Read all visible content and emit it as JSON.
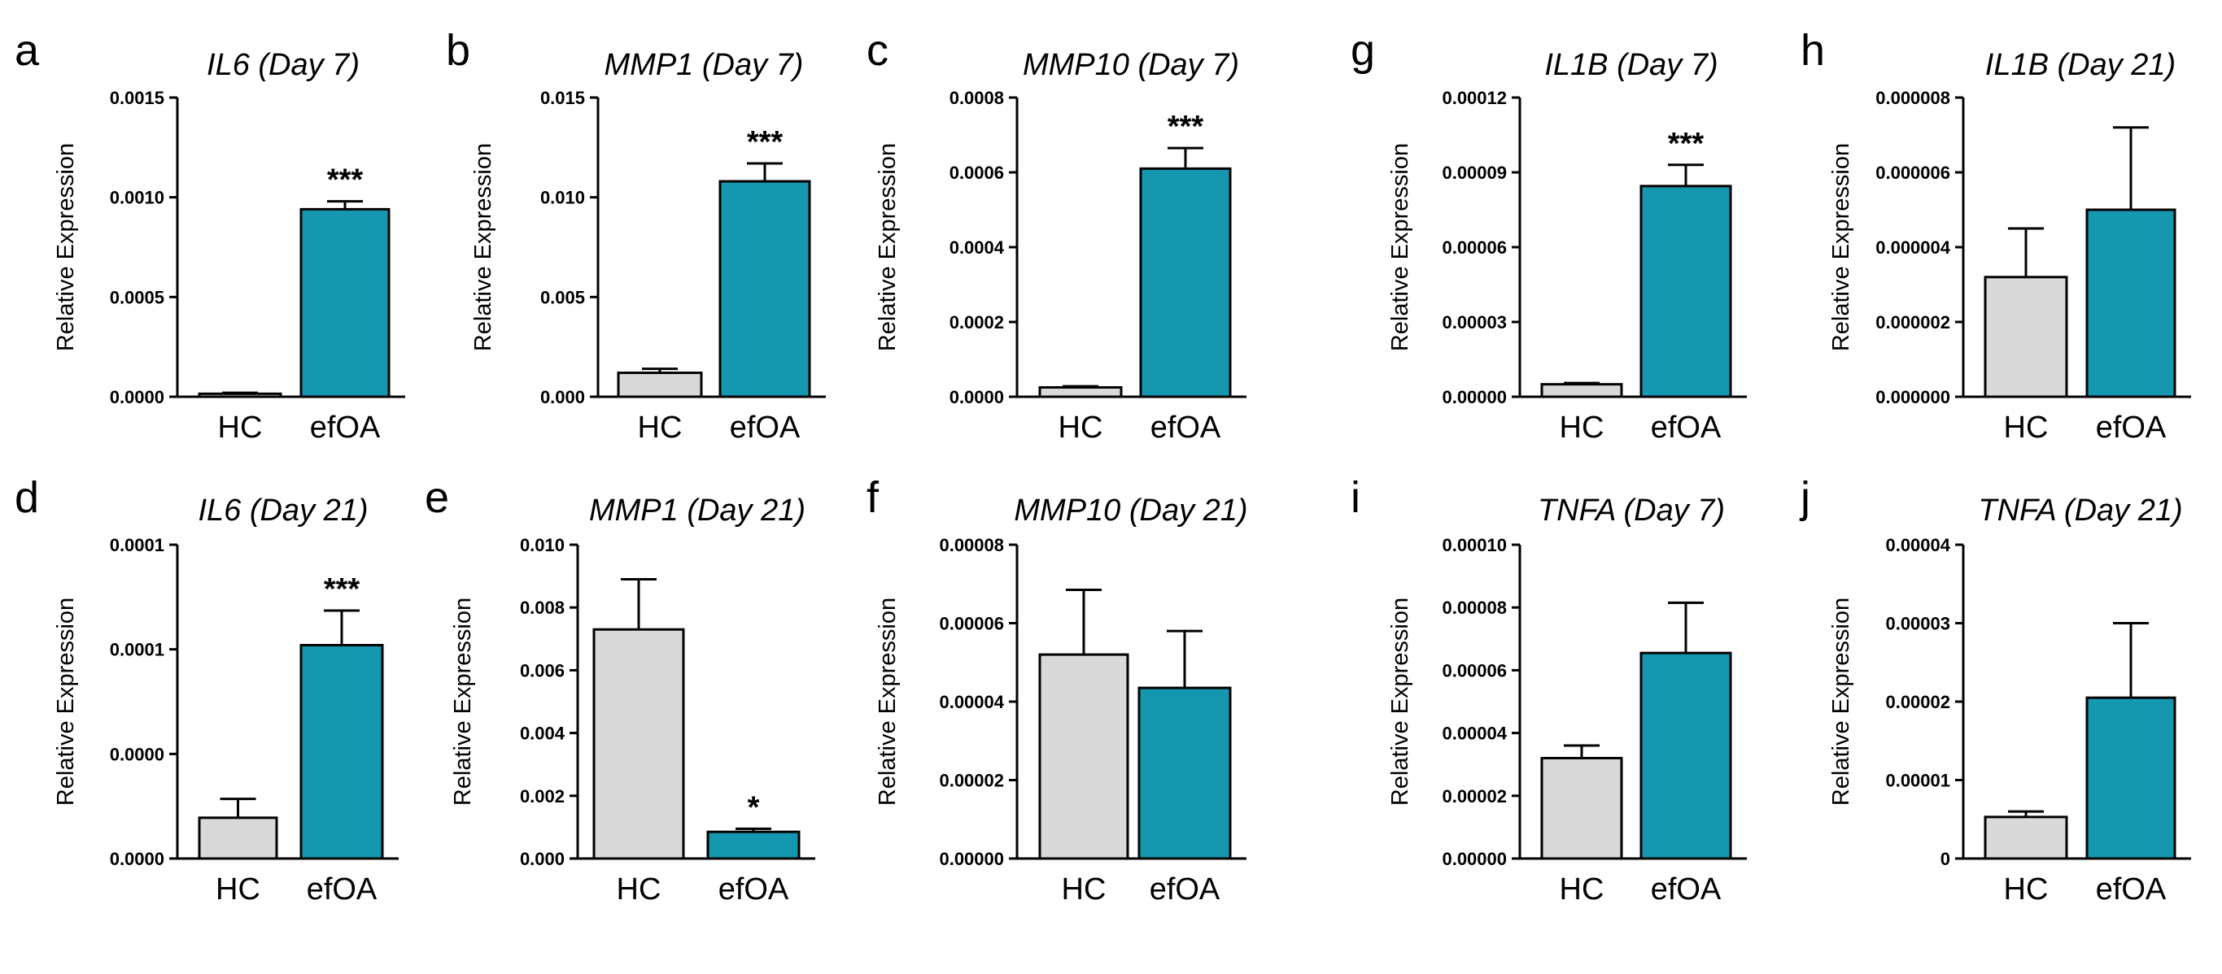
{
  "figure": {
    "colors": {
      "HC": "#d9d9d9",
      "efOA": "#1597af",
      "axis": "#000000"
    }
  },
  "chart_data": [
    {
      "letter": "a",
      "type": "bar",
      "title": "IL6 (Day 7)",
      "ylabel": "Relative Expression",
      "categories": [
        "HC",
        "efOA"
      ],
      "values": [
        1.5e-05,
        0.00094
      ],
      "errors": [
        5e-06,
        4e-05
      ],
      "ylim": [
        0,
        0.0015
      ],
      "yticks": [
        "0.0000",
        "0.0005",
        "0.0010",
        "0.0015"
      ],
      "significance": [
        "",
        "***"
      ]
    },
    {
      "letter": "b",
      "type": "bar",
      "title": "MMP1 (Day 7)",
      "ylabel": "Relative Expression",
      "categories": [
        "HC",
        "efOA"
      ],
      "values": [
        0.0012,
        0.0108
      ],
      "errors": [
        0.0002,
        0.0009
      ],
      "ylim": [
        0,
        0.015
      ],
      "yticks": [
        "0.000",
        "0.005",
        "0.010",
        "0.015"
      ],
      "significance": [
        "",
        "***"
      ]
    },
    {
      "letter": "c",
      "type": "bar",
      "title": "MMP10 (Day 7)",
      "ylabel": "Relative Expression",
      "categories": [
        "HC",
        "efOA"
      ],
      "values": [
        2.5e-05,
        0.00061
      ],
      "errors": [
        3e-06,
        5.5e-05
      ],
      "ylim": [
        0,
        0.0008
      ],
      "yticks": [
        "0.0000",
        "0.0002",
        "0.0004",
        "0.0006",
        "0.0008"
      ],
      "significance": [
        "",
        "***"
      ]
    },
    {
      "letter": "g",
      "type": "bar",
      "title": "IL1B (Day 7)",
      "ylabel": "Relative Expression",
      "categories": [
        "HC",
        "efOA"
      ],
      "values": [
        5e-06,
        8.45e-05
      ],
      "errors": [
        5e-07,
        8.5e-06
      ],
      "ylim": [
        0,
        0.00012
      ],
      "yticks": [
        "0.00000",
        "0.00003",
        "0.00006",
        "0.00009",
        "0.00012"
      ],
      "significance": [
        "",
        "***"
      ]
    },
    {
      "letter": "h",
      "type": "bar",
      "title": "IL1B (Day 21)",
      "ylabel": "Relative Expression",
      "categories": [
        "HC",
        "efOA"
      ],
      "values": [
        3.2e-06,
        5e-06
      ],
      "errors": [
        1.3e-06,
        2.2e-06
      ],
      "ylim": [
        0,
        8e-06
      ],
      "yticks": [
        "0.000000",
        "0.000002",
        "0.000004",
        "0.000006",
        "0.000008"
      ],
      "significance": [
        "",
        ""
      ]
    },
    {
      "letter": "d",
      "type": "bar",
      "title": "IL6 (Day 21)",
      "ylabel": "Relative Expression",
      "categories": [
        "HC",
        "efOA"
      ],
      "values": [
        1.3e-05,
        6.8e-05
      ],
      "errors": [
        6e-06,
        1.1e-05
      ],
      "ylim": [
        0,
        0.0001
      ],
      "yticks": [
        "0.0000",
        "0.0000",
        "0.0001",
        "0.0001"
      ],
      "significance": [
        "",
        "***"
      ]
    },
    {
      "letter": "e",
      "type": "bar",
      "title": "MMP1 (Day 21)",
      "ylabel": "Relative Expression",
      "categories": [
        "HC",
        "efOA"
      ],
      "values": [
        0.0073,
        0.00085
      ],
      "errors": [
        0.0016,
        0.0001
      ],
      "ylim": [
        0,
        0.01
      ],
      "yticks": [
        "0.000",
        "0.002",
        "0.004",
        "0.006",
        "0.008",
        "0.010"
      ],
      "significance": [
        "",
        "*"
      ]
    },
    {
      "letter": "f",
      "type": "bar",
      "title": "MMP10 (Day 21)",
      "ylabel": "Relative Expression",
      "categories": [
        "HC",
        "efOA"
      ],
      "values": [
        5.2e-05,
        4.35e-05
      ],
      "errors": [
        1.65e-05,
        1.45e-05
      ],
      "ylim": [
        0,
        8e-05
      ],
      "yticks": [
        "0.00000",
        "0.00002",
        "0.00004",
        "0.00006",
        "0.00008"
      ],
      "significance": [
        "",
        ""
      ]
    },
    {
      "letter": "i",
      "type": "bar",
      "title": "TNFA (Day 7)",
      "ylabel": "Relative Expression",
      "categories": [
        "HC",
        "efOA"
      ],
      "values": [
        3.2e-05,
        6.55e-05
      ],
      "errors": [
        4e-06,
        1.6e-05
      ],
      "ylim": [
        0,
        0.0001
      ],
      "yticks": [
        "0.00000",
        "0.00002",
        "0.00004",
        "0.00006",
        "0.00008",
        "0.00010"
      ],
      "significance": [
        "",
        ""
      ]
    },
    {
      "letter": "j",
      "type": "bar",
      "title": "TNFA (Day 21)",
      "ylabel": "Relative Expression",
      "categories": [
        "HC",
        "efOA"
      ],
      "values": [
        5.3e-06,
        2.05e-05
      ],
      "errors": [
        7e-07,
        9.5e-06
      ],
      "ylim": [
        0,
        4e-05
      ],
      "yticks": [
        "0",
        "0.00001",
        "0.00002",
        "0.00003",
        "0.00004"
      ],
      "significance": [
        "",
        ""
      ]
    }
  ]
}
